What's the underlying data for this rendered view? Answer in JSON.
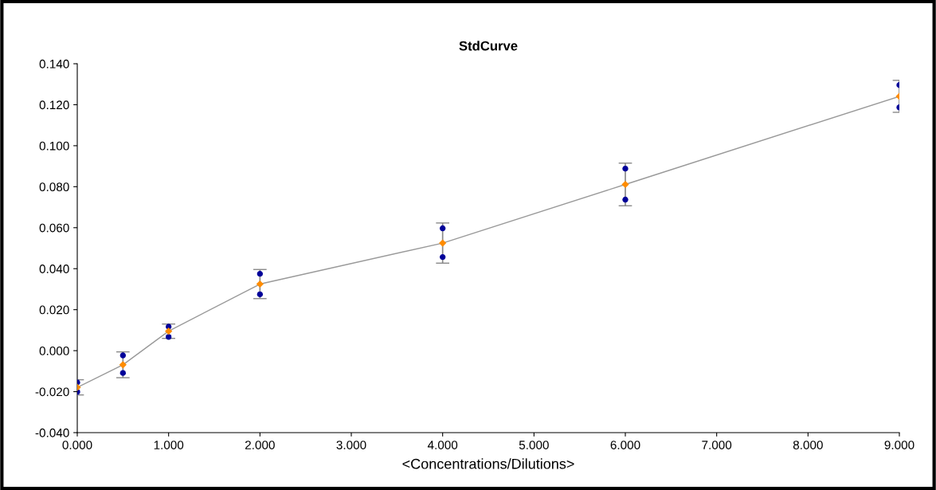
{
  "chart_data": {
    "type": "scatter",
    "title": "StdCurve",
    "xlabel": "<Concentrations/Dilutions>",
    "series": [
      {
        "type": "line",
        "color": "#999999",
        "marker": "none",
        "line_style": "solid",
        "x": [
          0,
          0.5,
          1,
          2,
          4,
          6,
          9
        ],
        "values": [
          -0.0179,
          -0.0069,
          0.0095,
          0.0325,
          0.0525,
          0.0811,
          0.1241
        ]
      },
      {
        "color": "#000099",
        "marker": "circle",
        "x": [
          0,
          0,
          0.5,
          0.5,
          1,
          1,
          2,
          2,
          4,
          4,
          6,
          6,
          9,
          9
        ],
        "values": [
          -0.0155,
          -0.0201,
          -0.0023,
          -0.0109,
          0.0117,
          0.0067,
          0.0375,
          0.0275,
          0.0597,
          0.0457,
          0.0888,
          0.0737,
          0.1296,
          0.1187
        ]
      },
      {
        "color": "#ff8c00",
        "marker": "diamond",
        "x": [
          0,
          0.5,
          1,
          2,
          4,
          6,
          9
        ],
        "values": [
          -0.0179,
          -0.0069,
          0.0095,
          0.0325,
          0.0525,
          0.0811,
          0.1241
        ],
        "errors": [
          0.0037,
          0.0063,
          0.0035,
          0.0071,
          0.0098,
          0.0104,
          0.0078
        ]
      }
    ],
    "xlim": [
      0,
      9
    ],
    "xticks": [
      {
        "value": 0,
        "label": "0.000"
      },
      {
        "value": 1,
        "label": "1.000"
      },
      {
        "value": 2,
        "label": "2.000"
      },
      {
        "value": 3,
        "label": "3.000"
      },
      {
        "value": 4,
        "label": "4.000"
      },
      {
        "value": 5,
        "label": "5.000"
      },
      {
        "value": 6,
        "label": "6.000"
      },
      {
        "value": 7,
        "label": "7.000"
      },
      {
        "value": 8,
        "label": "8.000"
      },
      {
        "value": 9,
        "label": "9.000"
      }
    ],
    "ylim": [
      -0.04,
      0.14
    ],
    "yticks": [
      {
        "value": -0.04,
        "label": "-0.040"
      },
      {
        "value": -0.02,
        "label": "-0.020"
      },
      {
        "value": 0,
        "label": "0.000"
      },
      {
        "value": 0.02,
        "label": "0.020"
      },
      {
        "value": 0.04,
        "label": "0.040"
      },
      {
        "value": 0.06,
        "label": "0.060"
      },
      {
        "value": 0.08,
        "label": "0.080"
      },
      {
        "value": 0.1,
        "label": "0.100"
      },
      {
        "value": 0.12,
        "label": "0.120"
      },
      {
        "value": 0.14,
        "label": "0.140"
      }
    ],
    "grid": false,
    "legend": false
  }
}
